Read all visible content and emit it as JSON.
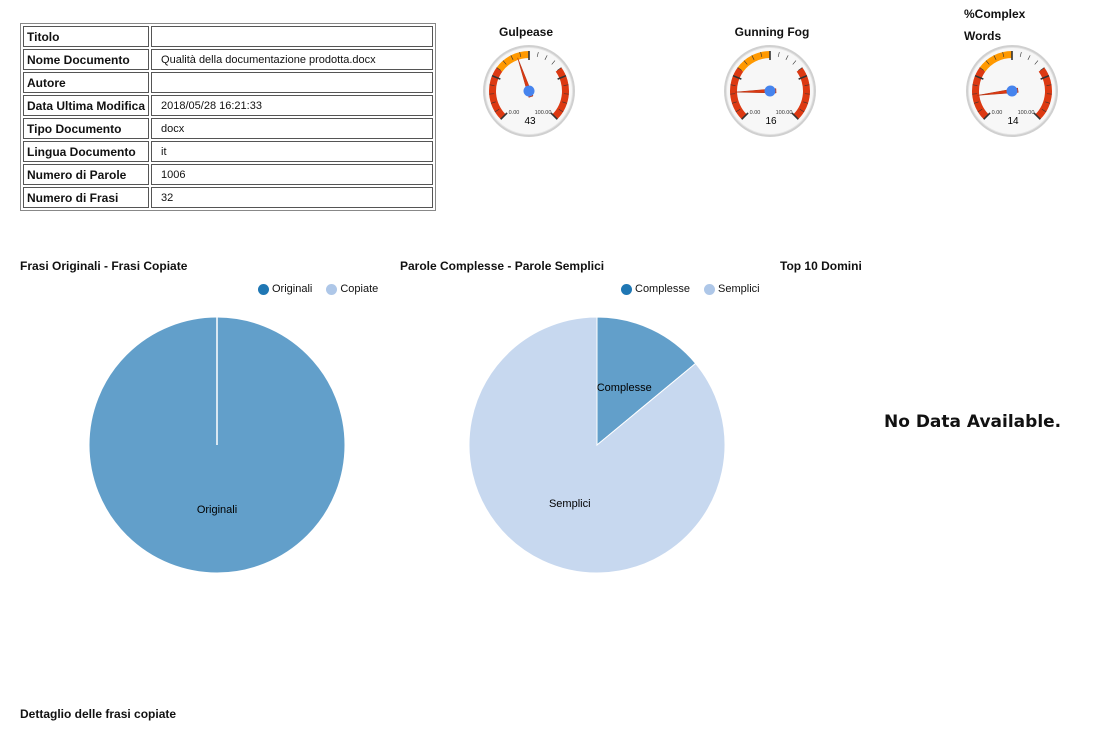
{
  "document_info": {
    "rows": [
      {
        "label": "Titolo",
        "value": ""
      },
      {
        "label": "Nome Documento",
        "value": "Qualità della documentazione prodotta.docx"
      },
      {
        "label": "Autore",
        "value": ""
      },
      {
        "label": "Data Ultima Modifica",
        "value": "2018/05/28 16:21:33"
      },
      {
        "label": "Tipo Documento",
        "value": "docx"
      },
      {
        "label": "Lingua Documento",
        "value": "it"
      },
      {
        "label": "Numero di Parole",
        "value": "1006"
      },
      {
        "label": "Numero di Frasi",
        "value": "32"
      }
    ]
  },
  "gauges": {
    "gulpease": {
      "title": "Gulpease",
      "value": "43",
      "min_label": "0.00",
      "max_label": "100.00"
    },
    "gunning": {
      "title": "Gunning Fog",
      "value": "16",
      "min_label": "0.00",
      "max_label": "100.00"
    },
    "complex": {
      "title_line1": "%Complex",
      "title_line2": "Words",
      "value": "14",
      "min_label": "0.00",
      "max_label": "100.00"
    }
  },
  "sections": {
    "frasi_title": "Frasi Originali - Frasi Copiate",
    "parole_title": "Parole Complesse - Parole Semplici",
    "domini_title": "Top 10 Domini",
    "no_data": "No Data Available.",
    "dettaglio_title": "Dettaglio delle frasi copiate"
  },
  "colors": {
    "primary": "#1f77b4",
    "light": "#aec7e8",
    "slice_dark": "#629fca",
    "slice_light": "#c7d8ef",
    "gauge_red": "#dc3912",
    "gauge_orange": "#ff9900",
    "needle": "#dc3912",
    "hub": "#4684ee"
  },
  "chart_data": [
    {
      "type": "pie",
      "title": "Frasi Originali - Frasi Copiate",
      "categories": [
        "Originali",
        "Copiate"
      ],
      "values": [
        100,
        0
      ],
      "slice_labels": [
        "Originali",
        ""
      ]
    },
    {
      "type": "pie",
      "title": "Parole Complesse - Parole Semplici",
      "categories": [
        "Complesse",
        "Semplici"
      ],
      "values": [
        14,
        86
      ],
      "slice_labels": [
        "Complesse",
        "Semplici"
      ]
    }
  ]
}
